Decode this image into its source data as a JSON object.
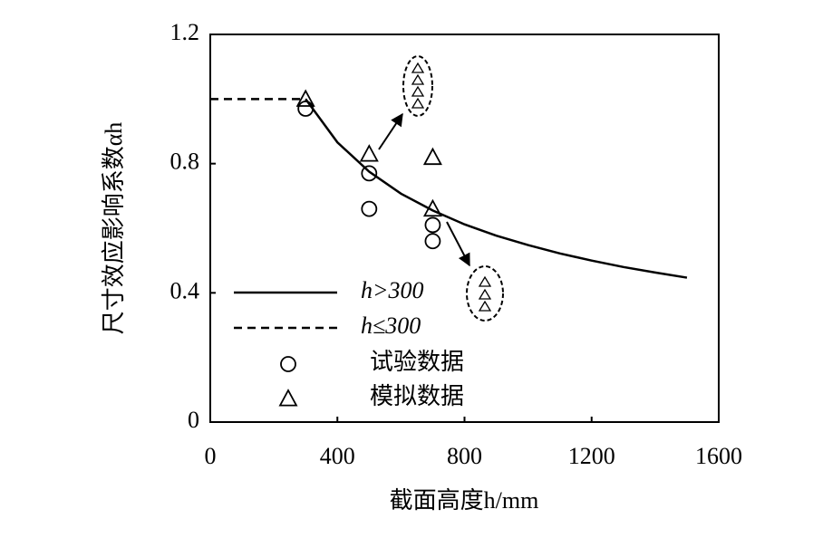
{
  "chart_data": {
    "type": "scatter",
    "x_label": "截面高度h/mm",
    "y_label": "尺寸效应影响系数αh",
    "xlim": [
      0,
      1600
    ],
    "xticks": [
      0,
      400,
      800,
      1200,
      1600
    ],
    "ylim": [
      0,
      1.2
    ],
    "yticks": [
      0,
      0.4,
      0.8,
      1.2
    ],
    "series": [
      {
        "name": "h>300",
        "mark": "line",
        "dash": false,
        "color": "#000000",
        "x": [
          300,
          400,
          500,
          600,
          700,
          800,
          900,
          1000,
          1100,
          1200,
          1300,
          1400,
          1500
        ],
        "values": [
          1.0,
          0.866,
          0.775,
          0.707,
          0.655,
          0.612,
          0.577,
          0.548,
          0.522,
          0.5,
          0.48,
          0.463,
          0.447
        ]
      },
      {
        "name": "h≤300",
        "mark": "line",
        "dash": true,
        "color": "#000000",
        "x": [
          0,
          300
        ],
        "values": [
          1.0,
          1.0
        ]
      },
      {
        "name": "试验数据",
        "mark": "circle",
        "color": "#000000",
        "x": [
          300,
          500,
          500,
          700,
          700
        ],
        "values": [
          0.97,
          0.77,
          0.66,
          0.61,
          0.56
        ]
      },
      {
        "name": "模拟数据",
        "mark": "triangle",
        "color": "#000000",
        "x": [
          300,
          500,
          700,
          700
        ],
        "values": [
          1.0,
          0.83,
          0.82,
          0.66
        ]
      }
    ]
  }
}
